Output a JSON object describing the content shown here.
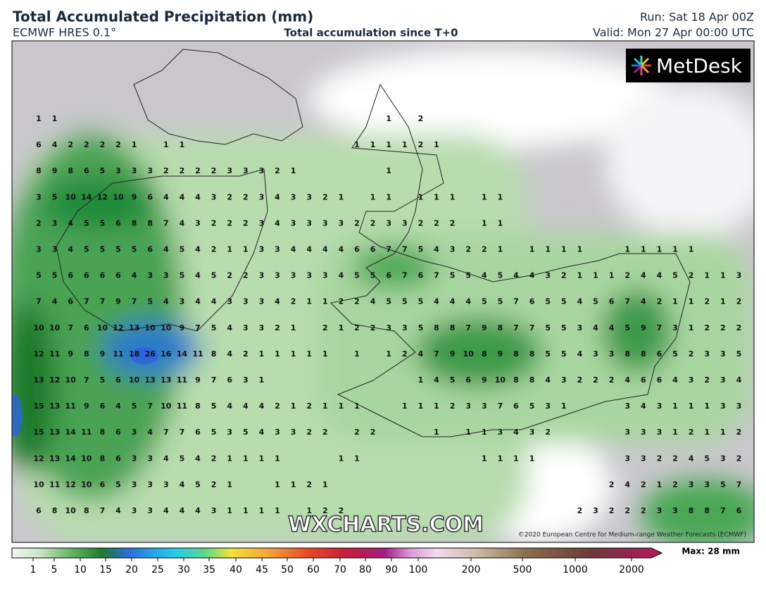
{
  "header": {
    "title": "Total Accumulated Precipitation (mm)",
    "model": "ECMWF HRES 0.1°",
    "subtitle": "Total accumulation since T+0",
    "run": "Run: Sat 18 Apr 00Z",
    "valid": "Valid: Mon 27 Apr 00:00 UTC"
  },
  "logo": "MetDesk",
  "watermark": "WXCHARTS.COM",
  "copyright": "©2020 European Centre for Medium-range Weather Forecasts (ECMWF)",
  "grid": [
    [
      1,
      1,
      null,
      null,
      null,
      null,
      null,
      null,
      null,
      null,
      null,
      null,
      null,
      null,
      null,
      null,
      null,
      null,
      null,
      null,
      null,
      null,
      1,
      null,
      2,
      null,
      null,
      null,
      null,
      null,
      null,
      null,
      null,
      null,
      null,
      null,
      null,
      null,
      null,
      null,
      null,
      null,
      null,
      null,
      null
    ],
    [
      6,
      4,
      2,
      2,
      2,
      2,
      1,
      null,
      1,
      1,
      null,
      null,
      null,
      null,
      null,
      null,
      null,
      null,
      null,
      null,
      1,
      1,
      1,
      1,
      2,
      1,
      null,
      null,
      null,
      null,
      null,
      null,
      null,
      null,
      null,
      null,
      null,
      null,
      null,
      null,
      null,
      null,
      null,
      null,
      null
    ],
    [
      8,
      9,
      8,
      6,
      5,
      3,
      3,
      3,
      2,
      2,
      2,
      2,
      3,
      3,
      3,
      2,
      1,
      null,
      null,
      null,
      null,
      null,
      1,
      null,
      null,
      null,
      null,
      null,
      null,
      null,
      null,
      null,
      null,
      null,
      null,
      null,
      null,
      null,
      null,
      null,
      null,
      null,
      null,
      null,
      null
    ],
    [
      3,
      5,
      10,
      14,
      12,
      10,
      9,
      6,
      4,
      4,
      4,
      3,
      2,
      2,
      3,
      4,
      3,
      3,
      2,
      1,
      null,
      1,
      1,
      null,
      1,
      1,
      1,
      null,
      1,
      1,
      null,
      null,
      null,
      null,
      null,
      null,
      null,
      null,
      null,
      null,
      null,
      null,
      null,
      null,
      null
    ],
    [
      2,
      3,
      4,
      5,
      5,
      6,
      8,
      8,
      7,
      4,
      3,
      2,
      2,
      2,
      3,
      4,
      3,
      3,
      3,
      3,
      2,
      2,
      3,
      3,
      2,
      2,
      2,
      null,
      1,
      1,
      null,
      null,
      null,
      null,
      null,
      null,
      null,
      null,
      null,
      null,
      null,
      null,
      null,
      null,
      null
    ],
    [
      3,
      3,
      4,
      5,
      5,
      5,
      5,
      6,
      4,
      5,
      4,
      2,
      1,
      1,
      3,
      3,
      4,
      4,
      4,
      4,
      6,
      6,
      7,
      7,
      5,
      4,
      3,
      2,
      2,
      1,
      null,
      1,
      1,
      1,
      1,
      null,
      null,
      1,
      1,
      1,
      1,
      1,
      null,
      null,
      null
    ],
    [
      5,
      5,
      6,
      6,
      6,
      6,
      4,
      3,
      3,
      5,
      4,
      5,
      2,
      2,
      3,
      3,
      3,
      3,
      3,
      4,
      5,
      5,
      6,
      7,
      6,
      7,
      5,
      5,
      4,
      5,
      4,
      4,
      3,
      2,
      1,
      1,
      1,
      2,
      4,
      4,
      5,
      2,
      1,
      1,
      3
    ],
    [
      7,
      4,
      6,
      7,
      7,
      9,
      7,
      5,
      4,
      3,
      4,
      4,
      3,
      3,
      3,
      4,
      2,
      1,
      1,
      2,
      2,
      4,
      5,
      5,
      5,
      4,
      4,
      4,
      5,
      5,
      7,
      6,
      5,
      5,
      4,
      5,
      6,
      7,
      4,
      2,
      1,
      1,
      2,
      1,
      2
    ],
    [
      10,
      10,
      7,
      6,
      10,
      12,
      13,
      10,
      10,
      9,
      7,
      5,
      4,
      3,
      3,
      2,
      1,
      null,
      2,
      1,
      2,
      2,
      3,
      3,
      5,
      8,
      8,
      7,
      9,
      8,
      7,
      7,
      5,
      5,
      3,
      4,
      4,
      5,
      9,
      7,
      3,
      1,
      2,
      2,
      2
    ],
    [
      12,
      11,
      9,
      8,
      9,
      11,
      18,
      26,
      16,
      14,
      11,
      8,
      4,
      2,
      1,
      1,
      1,
      1,
      1,
      null,
      1,
      null,
      1,
      2,
      4,
      7,
      9,
      10,
      8,
      9,
      8,
      8,
      5,
      5,
      4,
      3,
      3,
      8,
      8,
      6,
      5,
      2,
      3,
      3,
      5
    ],
    [
      13,
      12,
      10,
      7,
      5,
      6,
      10,
      13,
      13,
      11,
      9,
      7,
      6,
      3,
      1,
      null,
      null,
      null,
      null,
      null,
      null,
      null,
      null,
      null,
      1,
      4,
      5,
      6,
      9,
      10,
      8,
      8,
      4,
      3,
      2,
      2,
      2,
      4,
      6,
      6,
      4,
      3,
      2,
      3,
      4
    ],
    [
      15,
      13,
      11,
      9,
      6,
      4,
      5,
      7,
      10,
      11,
      8,
      5,
      4,
      4,
      4,
      2,
      1,
      2,
      1,
      1,
      1,
      null,
      null,
      1,
      1,
      1,
      2,
      3,
      3,
      7,
      6,
      5,
      3,
      1,
      null,
      null,
      null,
      3,
      4,
      3,
      1,
      1,
      1,
      3,
      3
    ],
    [
      15,
      13,
      14,
      11,
      8,
      6,
      3,
      4,
      7,
      7,
      6,
      5,
      3,
      5,
      4,
      3,
      3,
      2,
      2,
      null,
      2,
      2,
      null,
      null,
      null,
      1,
      null,
      1,
      1,
      3,
      4,
      3,
      2,
      null,
      null,
      null,
      null,
      3,
      3,
      3,
      1,
      2,
      1,
      1,
      2
    ],
    [
      12,
      13,
      14,
      10,
      8,
      6,
      3,
      3,
      4,
      5,
      4,
      2,
      1,
      1,
      1,
      1,
      null,
      null,
      null,
      1,
      1,
      null,
      null,
      null,
      null,
      null,
      null,
      null,
      1,
      1,
      1,
      1,
      null,
      null,
      null,
      null,
      null,
      3,
      3,
      2,
      2,
      4,
      5,
      3,
      2
    ],
    [
      10,
      11,
      12,
      10,
      6,
      5,
      3,
      3,
      3,
      4,
      5,
      2,
      1,
      null,
      null,
      1,
      1,
      2,
      1,
      null,
      null,
      null,
      null,
      null,
      null,
      null,
      null,
      null,
      null,
      null,
      null,
      null,
      null,
      null,
      null,
      null,
      2,
      4,
      2,
      1,
      2,
      3,
      3,
      5,
      7
    ],
    [
      6,
      8,
      10,
      8,
      7,
      4,
      3,
      3,
      4,
      4,
      4,
      3,
      1,
      1,
      1,
      1,
      null,
      1,
      2,
      2,
      null,
      null,
      null,
      null,
      null,
      null,
      null,
      null,
      null,
      null,
      null,
      null,
      null,
      null,
      2,
      3,
      2,
      2,
      2,
      3,
      3,
      8,
      8,
      7,
      6
    ]
  ],
  "colorbar": {
    "ticks": [
      1,
      5,
      10,
      15,
      20,
      25,
      30,
      35,
      40,
      45,
      50,
      60,
      70,
      80,
      90,
      100,
      200,
      500,
      1000,
      2000
    ],
    "max_label": "Max: 28 mm"
  }
}
